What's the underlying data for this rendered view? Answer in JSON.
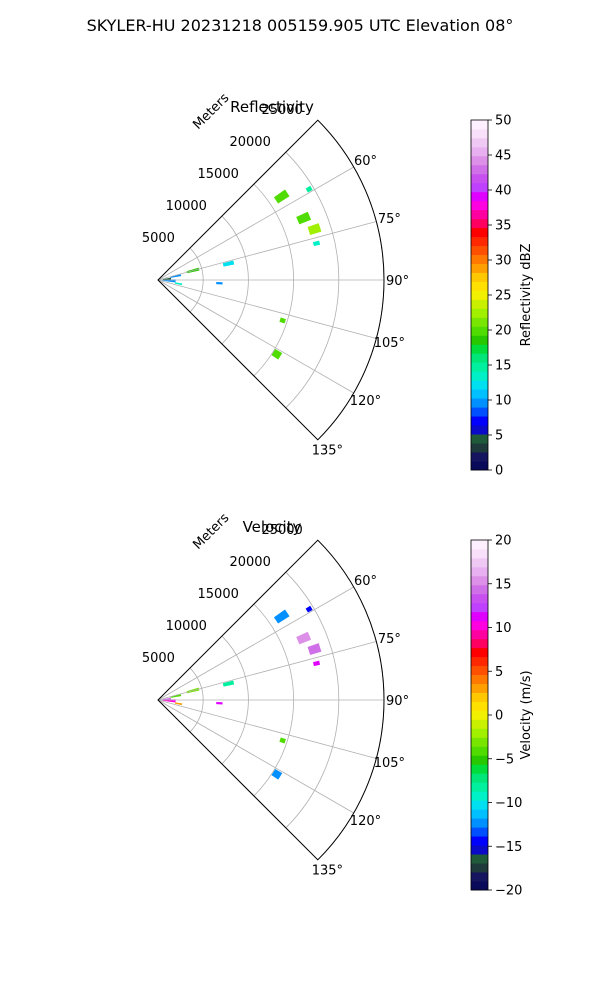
{
  "suptitle": "SKYLER-HU  20231218  005159.905 UTC Elevation 08°",
  "chart_data": [
    {
      "type": "heatmap",
      "title": "Reflectivity",
      "range_label": "Meters",
      "range_rings": [
        5000,
        10000,
        15000,
        20000,
        25000
      ],
      "azimuth_ticks": [
        "60°",
        "75°",
        "90°",
        "105°",
        "120°",
        "135°"
      ],
      "azimuth_values": [
        60,
        75,
        90,
        105,
        120,
        135
      ],
      "azimuth_range": [
        45,
        135
      ],
      "max_range": 25000,
      "grid": true,
      "colorbar": {
        "label": "Reflectivity dBZ",
        "min": 0,
        "max": 50,
        "ticks": [
          "0",
          "5",
          "10",
          "15",
          "20",
          "25",
          "30",
          "35",
          "40",
          "45",
          "50"
        ],
        "tick_values": [
          0,
          5,
          10,
          15,
          20,
          25,
          30,
          35,
          40,
          45,
          50
        ],
        "colors": [
          "#0a0a5a",
          "#14145f",
          "#1e3a3a",
          "#1f5a3a",
          "#0a0ac8",
          "#0000ff",
          "#0050ff",
          "#0090ff",
          "#00c0ff",
          "#00e0f0",
          "#00f0c8",
          "#00f0a0",
          "#00e678",
          "#00dc3c",
          "#28c800",
          "#50dc00",
          "#78e600",
          "#a0f000",
          "#c8f000",
          "#f0f000",
          "#ffe000",
          "#ffc800",
          "#ffa000",
          "#ff7800",
          "#ff5000",
          "#ff2800",
          "#ff0000",
          "#ff0060",
          "#ff00a0",
          "#ff00e0",
          "#e000ff",
          "#c040ff",
          "#c850f0",
          "#d070e8",
          "#dc90e8",
          "#e8b0f0",
          "#f0c8f4",
          "#f8e0fa",
          "#fff0ff"
        ]
      },
      "echoes": [
        {
          "az": 56,
          "r": 16500,
          "dr": 1500,
          "daz": 3,
          "value": 20
        },
        {
          "az": 59,
          "r": 19500,
          "dr": 600,
          "daz": 1.5,
          "value": 15
        },
        {
          "az": 67,
          "r": 17500,
          "dr": 1400,
          "daz": 3,
          "value": 20
        },
        {
          "az": 72,
          "r": 18200,
          "dr": 1300,
          "daz": 3,
          "value": 22
        },
        {
          "az": 77,
          "r": 18000,
          "dr": 700,
          "daz": 1.5,
          "value": 14
        },
        {
          "az": 77,
          "r": 8000,
          "dr": 1200,
          "daz": 3,
          "value": 12
        },
        {
          "az": 75,
          "r": 4000,
          "dr": 1400,
          "daz": 4,
          "value": 18
        },
        {
          "az": 78,
          "r": 2000,
          "dr": 1200,
          "daz": 5,
          "value": 10
        },
        {
          "az": 85,
          "r": 1000,
          "dr": 900,
          "daz": 10,
          "value": 5
        },
        {
          "az": 93,
          "r": 1200,
          "dr": 1500,
          "daz": 10,
          "value": 10
        },
        {
          "az": 93,
          "r": 6800,
          "dr": 700,
          "daz": 2,
          "value": 10
        },
        {
          "az": 100,
          "r": 2300,
          "dr": 800,
          "daz": 4,
          "value": 14
        },
        {
          "az": 108,
          "r": 14500,
          "dr": 600,
          "daz": 2,
          "value": 20
        },
        {
          "az": 122,
          "r": 15500,
          "dr": 900,
          "daz": 3,
          "value": 20
        }
      ]
    },
    {
      "type": "heatmap",
      "title": "Velocity",
      "range_label": "Meters",
      "range_rings": [
        5000,
        10000,
        15000,
        20000,
        25000
      ],
      "azimuth_ticks": [
        "60°",
        "75°",
        "90°",
        "105°",
        "120°",
        "135°"
      ],
      "azimuth_values": [
        60,
        75,
        90,
        105,
        120,
        135
      ],
      "azimuth_range": [
        45,
        135
      ],
      "max_range": 25000,
      "grid": true,
      "colorbar": {
        "label": "Velocity (m/s)",
        "min": -20,
        "max": 20,
        "ticks": [
          "−20",
          "−15",
          "−10",
          "−5",
          "0",
          "5",
          "10",
          "15",
          "20"
        ],
        "tick_values": [
          -20,
          -15,
          -10,
          -5,
          0,
          5,
          10,
          15,
          20
        ],
        "colors": [
          "#0a0a5a",
          "#14145f",
          "#1e3a3a",
          "#1f5a3a",
          "#0a0ac8",
          "#0000ff",
          "#0050ff",
          "#0090ff",
          "#00c0ff",
          "#00e0f0",
          "#00f0c8",
          "#00f0a0",
          "#00e678",
          "#00dc3c",
          "#28c800",
          "#50dc00",
          "#78e600",
          "#a0f000",
          "#c8f000",
          "#f0f000",
          "#ffe000",
          "#ffc800",
          "#ffa000",
          "#ff7800",
          "#ff5000",
          "#ff2800",
          "#ff0000",
          "#ff0060",
          "#ff00a0",
          "#ff00e0",
          "#e000ff",
          "#c040ff",
          "#c850f0",
          "#d070e8",
          "#dc90e8",
          "#e8b0f0",
          "#f0c8f4",
          "#f8e0fa",
          "#fff0ff"
        ]
      },
      "echoes": [
        {
          "az": 56,
          "r": 16500,
          "dr": 1500,
          "daz": 3,
          "value": -12
        },
        {
          "az": 59,
          "r": 19500,
          "dr": 600,
          "daz": 1.5,
          "value": -14
        },
        {
          "az": 67,
          "r": 17500,
          "dr": 1400,
          "daz": 3,
          "value": 15
        },
        {
          "az": 72,
          "r": 18200,
          "dr": 1300,
          "daz": 3,
          "value": 14
        },
        {
          "az": 77,
          "r": 18000,
          "dr": 700,
          "daz": 1.5,
          "value": 11
        },
        {
          "az": 77,
          "r": 8000,
          "dr": 1200,
          "daz": 3,
          "value": -8
        },
        {
          "az": 75,
          "r": 4000,
          "dr": 1400,
          "daz": 4,
          "value": -3
        },
        {
          "az": 78,
          "r": 2000,
          "dr": 1200,
          "daz": 5,
          "value": -4
        },
        {
          "az": 85,
          "r": 1000,
          "dr": 900,
          "daz": 10,
          "value": 14
        },
        {
          "az": 93,
          "r": 1200,
          "dr": 1500,
          "daz": 10,
          "value": 10
        },
        {
          "az": 93,
          "r": 6800,
          "dr": 700,
          "daz": 2,
          "value": 11
        },
        {
          "az": 100,
          "r": 2300,
          "dr": 800,
          "daz": 4,
          "value": 3
        },
        {
          "az": 108,
          "r": 14500,
          "dr": 600,
          "daz": 2,
          "value": -4
        },
        {
          "az": 122,
          "r": 15500,
          "dr": 900,
          "daz": 3,
          "value": -12
        }
      ]
    }
  ]
}
